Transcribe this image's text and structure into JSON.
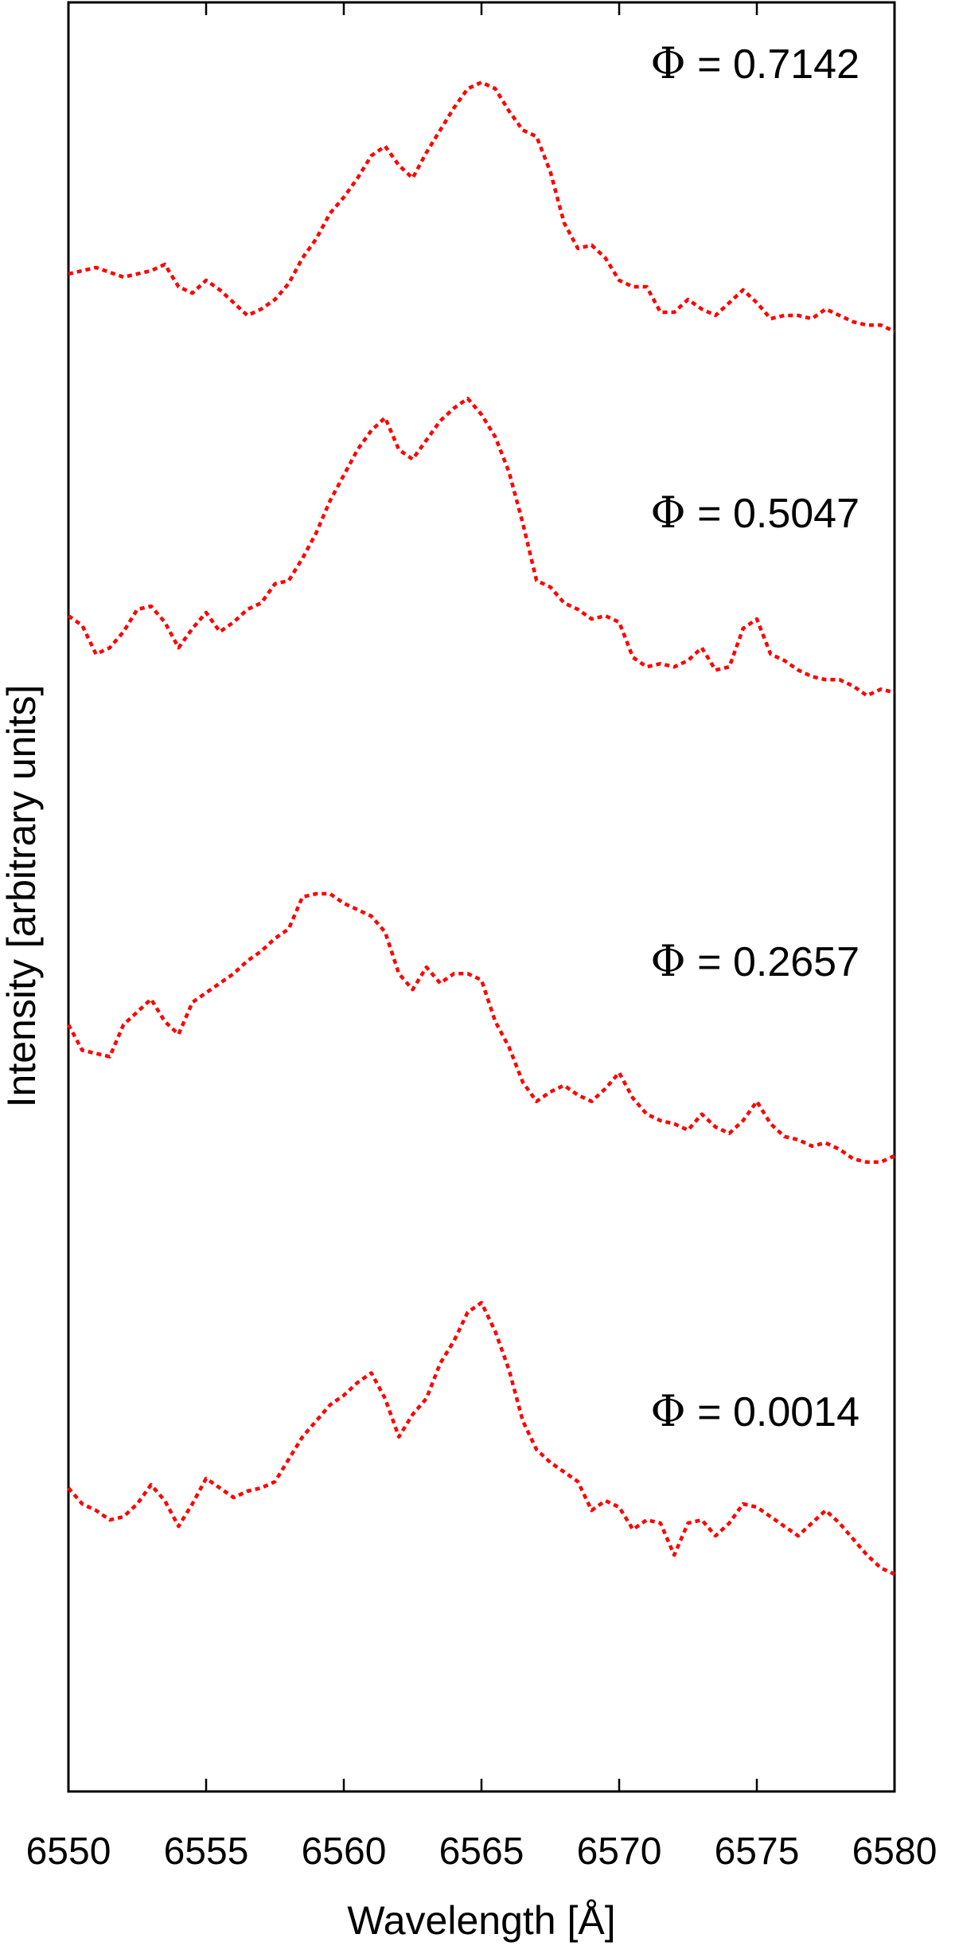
{
  "chart_data": {
    "type": "line",
    "xlabel": "Wavelength [Å]",
    "ylabel": "Intensity [arbitrary units]",
    "xlim": [
      6550,
      6580
    ],
    "x_ticks": [
      "6550",
      "6555",
      "6560",
      "6565",
      "6570",
      "6575",
      "6580"
    ],
    "y_ticks": [],
    "line_style": "dotted",
    "line_color": "#ff0000",
    "grid": false,
    "series": [
      {
        "symbol": "Φ",
        "label": "= 0.7142",
        "x": [
          6550.0,
          6551.0,
          6552.0,
          6553.0,
          6553.5,
          6554.0,
          6554.5,
          6555.0,
          6555.5,
          6556.0,
          6556.5,
          6557.0,
          6557.5,
          6558.0,
          6558.5,
          6559.0,
          6559.5,
          6560.0,
          6560.5,
          6561.0,
          6561.5,
          6562.0,
          6562.5,
          6563.0,
          6563.5,
          6564.0,
          6564.5,
          6565.0,
          6565.5,
          6566.0,
          6566.5,
          6567.0,
          6567.5,
          6568.0,
          6568.5,
          6569.0,
          6569.5,
          6570.0,
          6570.5,
          6571.0,
          6571.5,
          6572.0,
          6572.5,
          6573.0,
          6573.5,
          6574.0,
          6574.5,
          6575.0,
          6575.5,
          6576.0,
          6576.5,
          6577.0,
          6577.5,
          6578.0,
          6578.5,
          6579.0,
          6579.5,
          6580.0
        ],
        "y": [
          6.75,
          6.77,
          6.74,
          6.76,
          6.78,
          6.71,
          6.69,
          6.73,
          6.7,
          6.66,
          6.62,
          6.64,
          6.67,
          6.72,
          6.8,
          6.86,
          6.94,
          6.99,
          7.05,
          7.12,
          7.15,
          7.09,
          7.05,
          7.13,
          7.2,
          7.27,
          7.33,
          7.35,
          7.33,
          7.26,
          7.2,
          7.18,
          7.07,
          6.91,
          6.83,
          6.84,
          6.8,
          6.73,
          6.71,
          6.71,
          6.63,
          6.63,
          6.67,
          6.64,
          6.62,
          6.66,
          6.7,
          6.66,
          6.61,
          6.62,
          6.62,
          6.61,
          6.64,
          6.62,
          6.6,
          6.59,
          6.59,
          6.57
        ]
      },
      {
        "symbol": "Φ",
        "label": "= 0.5047",
        "x": [
          6550.0,
          6550.5,
          6551.0,
          6551.5,
          6552.0,
          6552.5,
          6553.0,
          6553.5,
          6554.0,
          6554.5,
          6555.0,
          6555.5,
          6556.0,
          6556.5,
          6557.0,
          6557.5,
          6558.0,
          6558.5,
          6559.0,
          6559.5,
          6560.0,
          6560.5,
          6561.0,
          6561.5,
          6562.0,
          6562.5,
          6563.0,
          6563.5,
          6564.0,
          6564.5,
          6565.0,
          6565.5,
          6566.0,
          6566.5,
          6567.0,
          6567.5,
          6568.0,
          6568.5,
          6569.0,
          6569.5,
          6570.0,
          6570.5,
          6571.0,
          6571.5,
          6572.0,
          6572.5,
          6573.0,
          6573.5,
          6574.0,
          6574.5,
          6575.0,
          6575.5,
          6576.0,
          6576.5,
          6577.0,
          6577.5,
          6578.0,
          6578.5,
          6579.0,
          6579.5,
          6580.0
        ],
        "y": [
          5.68,
          5.65,
          5.56,
          5.58,
          5.63,
          5.7,
          5.71,
          5.66,
          5.58,
          5.64,
          5.69,
          5.63,
          5.66,
          5.7,
          5.72,
          5.78,
          5.79,
          5.86,
          5.94,
          6.04,
          6.12,
          6.2,
          6.26,
          6.3,
          6.2,
          6.17,
          6.23,
          6.29,
          6.33,
          6.36,
          6.31,
          6.24,
          6.13,
          5.97,
          5.79,
          5.77,
          5.72,
          5.7,
          5.67,
          5.68,
          5.66,
          5.55,
          5.52,
          5.53,
          5.52,
          5.54,
          5.58,
          5.51,
          5.52,
          5.64,
          5.67,
          5.56,
          5.54,
          5.51,
          5.49,
          5.48,
          5.48,
          5.46,
          5.43,
          5.45,
          5.44
        ]
      },
      {
        "symbol": "Φ",
        "label": "= 0.2657",
        "x": [
          6550.0,
          6550.5,
          6551.0,
          6551.5,
          6552.0,
          6552.5,
          6553.0,
          6553.5,
          6554.0,
          6554.5,
          6555.0,
          6555.5,
          6556.0,
          6556.5,
          6557.0,
          6557.5,
          6558.0,
          6558.5,
          6559.0,
          6559.5,
          6560.0,
          6560.5,
          6561.0,
          6561.5,
          6562.0,
          6562.5,
          6563.0,
          6563.5,
          6564.0,
          6564.5,
          6565.0,
          6565.5,
          6566.0,
          6566.5,
          6567.0,
          6567.5,
          6568.0,
          6568.5,
          6569.0,
          6569.5,
          6570.0,
          6570.5,
          6571.0,
          6571.5,
          6572.0,
          6572.5,
          6573.0,
          6573.5,
          6574.0,
          6574.5,
          6575.0,
          6575.5,
          6576.0,
          6576.5,
          6577.0,
          6577.5,
          6578.0,
          6578.5,
          6579.0,
          6579.5,
          6580.0
        ],
        "y": [
          4.4,
          4.32,
          4.31,
          4.3,
          4.4,
          4.44,
          4.48,
          4.41,
          4.37,
          4.47,
          4.5,
          4.53,
          4.56,
          4.6,
          4.63,
          4.67,
          4.7,
          4.8,
          4.81,
          4.81,
          4.78,
          4.76,
          4.74,
          4.69,
          4.56,
          4.51,
          4.58,
          4.53,
          4.56,
          4.56,
          4.54,
          4.41,
          4.33,
          4.22,
          4.16,
          4.19,
          4.21,
          4.18,
          4.16,
          4.2,
          4.25,
          4.17,
          4.12,
          4.1,
          4.09,
          4.07,
          4.12,
          4.08,
          4.06,
          4.1,
          4.16,
          4.09,
          4.05,
          4.04,
          4.02,
          4.03,
          4.01,
          3.98,
          3.97,
          3.97,
          3.99
        ]
      },
      {
        "symbol": "Φ",
        "label": "= 0.0014",
        "x": [
          6550.0,
          6550.5,
          6551.0,
          6551.5,
          6552.0,
          6552.5,
          6553.0,
          6553.5,
          6554.0,
          6554.5,
          6555.0,
          6555.5,
          6556.0,
          6556.5,
          6557.0,
          6557.5,
          6558.0,
          6558.5,
          6559.0,
          6559.5,
          6560.0,
          6560.5,
          6561.0,
          6561.5,
          6562.0,
          6562.5,
          6563.0,
          6563.5,
          6564.0,
          6564.5,
          6565.0,
          6565.5,
          6566.0,
          6566.5,
          6567.0,
          6567.5,
          6568.0,
          6568.5,
          6569.0,
          6569.5,
          6570.0,
          6570.5,
          6571.0,
          6571.5,
          6572.0,
          6572.5,
          6573.0,
          6573.5,
          6574.0,
          6574.5,
          6575.0,
          6575.5,
          6576.0,
          6576.5,
          6577.0,
          6577.5,
          6578.0,
          6578.5,
          6579.0,
          6579.5,
          6580.0
        ],
        "y": [
          2.95,
          2.9,
          2.88,
          2.85,
          2.86,
          2.9,
          2.96,
          2.91,
          2.83,
          2.9,
          2.98,
          2.95,
          2.92,
          2.94,
          2.95,
          2.97,
          3.04,
          3.11,
          3.16,
          3.21,
          3.24,
          3.28,
          3.31,
          3.23,
          3.11,
          3.18,
          3.23,
          3.34,
          3.41,
          3.5,
          3.53,
          3.44,
          3.32,
          3.16,
          3.07,
          3.03,
          3.0,
          2.97,
          2.88,
          2.91,
          2.89,
          2.82,
          2.85,
          2.84,
          2.74,
          2.84,
          2.85,
          2.8,
          2.84,
          2.9,
          2.89,
          2.86,
          2.83,
          2.8,
          2.84,
          2.88,
          2.84,
          2.79,
          2.74,
          2.7,
          2.68
        ]
      }
    ]
  }
}
